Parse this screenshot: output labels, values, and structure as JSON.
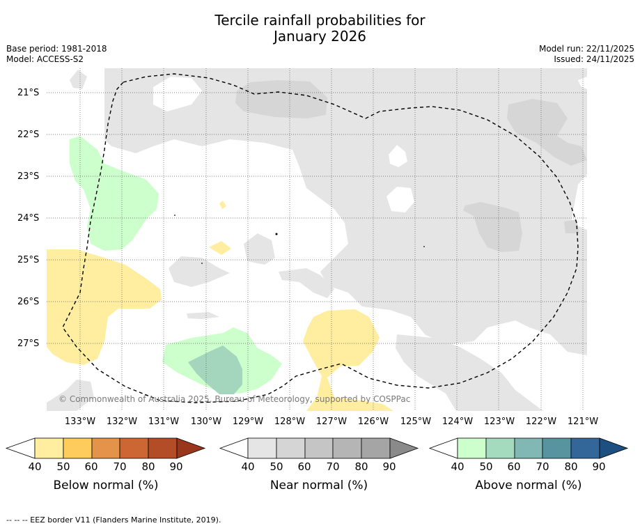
{
  "title_line1": "Tercile rainfall probabilities for",
  "title_line2": "January 2026",
  "base_period": "Base period: 1981-2018",
  "model": "Model: ACCESS-S2",
  "model_run": "Model run: 22/11/2025",
  "issued": "Issued: 24/11/2025",
  "latitudes": [
    "21°S",
    "22°S",
    "23°S",
    "24°S",
    "25°S",
    "26°S",
    "27°S"
  ],
  "longitudes": [
    "133°W",
    "132°W",
    "131°W",
    "130°W",
    "129°W",
    "128°W",
    "127°W",
    "126°W",
    "125°W",
    "124°W",
    "123°W",
    "122°W",
    "121°W"
  ],
  "copyright": "© Commonwealth of Australia 2025, Bureau of Meteorology, supported by COSPPac",
  "legends": [
    {
      "title": "Below normal (%)",
      "ticks": [
        "40",
        "50",
        "60",
        "70",
        "80",
        "90"
      ],
      "colors": [
        "#ffeda0",
        "#fecc5c",
        "#e3944a",
        "#cc6633",
        "#b24d28",
        "#99361c"
      ]
    },
    {
      "title": "Near normal (%)",
      "ticks": [
        "40",
        "50",
        "60",
        "70",
        "80",
        "90"
      ],
      "colors": [
        "#e5e5e5",
        "#d5d5d5",
        "#c5c5c5",
        "#b5b5b5",
        "#a5a5a5",
        "#8a8a8a"
      ]
    },
    {
      "title": "Above normal (%)",
      "ticks": [
        "40",
        "50",
        "60",
        "70",
        "80",
        "90"
      ],
      "colors": [
        "#ccffcc",
        "#a4dabe",
        "#82b8b3",
        "#5893a0",
        "#336699",
        "#1d4f80"
      ]
    }
  ],
  "footer": "-- -- -- EEZ border V11 (Flanders Marine Institute, 2019)."
}
